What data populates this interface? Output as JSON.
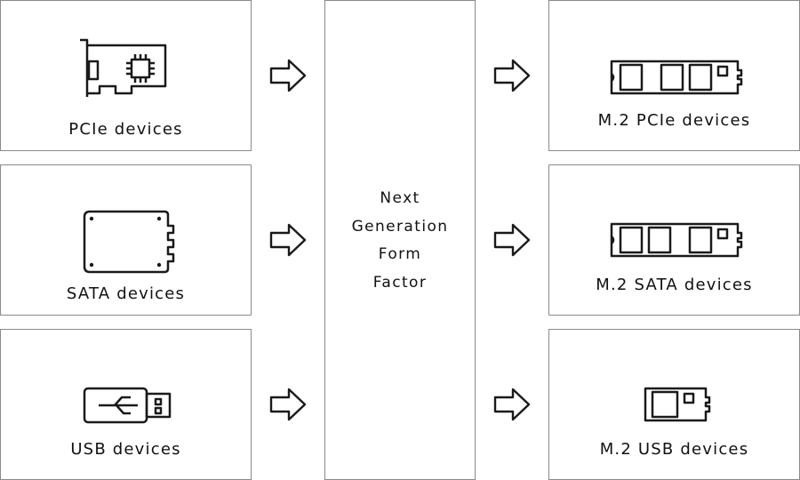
{
  "diagram": {
    "inputs": [
      {
        "label": "PCIe devices",
        "icon": "pcie-card-icon"
      },
      {
        "label": "SATA devices",
        "icon": "ssd-drive-icon"
      },
      {
        "label": "USB devices",
        "icon": "usb-stick-icon"
      }
    ],
    "center": {
      "lines": [
        "Next",
        "Generation",
        "Form",
        "Factor"
      ]
    },
    "outputs": [
      {
        "label": "M.2 PCIe devices",
        "icon": "m2-module-icon"
      },
      {
        "label": "M.2 SATA devices",
        "icon": "m2-module-icon"
      },
      {
        "label": "M.2 USB devices",
        "icon": "m2-short-module-icon"
      }
    ],
    "colors": {
      "border": "#8a8a8a",
      "stroke": "#1a1a1a",
      "text": "#111111"
    }
  }
}
